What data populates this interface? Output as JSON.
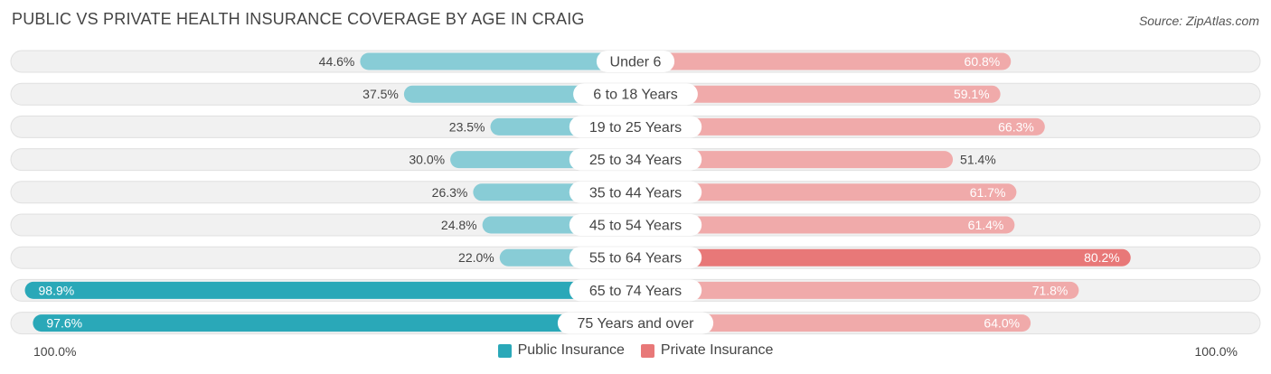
{
  "header": {
    "title": "PUBLIC VS PRIVATE HEALTH INSURANCE COVERAGE BY AGE IN CRAIG",
    "source": "Source: ZipAtlas.com"
  },
  "axis": {
    "left_label": "100.0%",
    "right_label": "100.0%"
  },
  "legend": {
    "public_label": "Public Insurance",
    "private_label": "Private Insurance"
  },
  "colors": {
    "public_dark": "#2aa8b8",
    "public_light": "#88ccd6",
    "private_dark": "#e87878",
    "private_light": "#f0aaaa",
    "row_bg": "#f1f1f1",
    "row_border": "#e0e0e0"
  },
  "chart_data": {
    "type": "bar",
    "orientation": "horizontal-diverging",
    "title": "PUBLIC VS PRIVATE HEALTH INSURANCE COVERAGE BY AGE IN CRAIG",
    "categories": [
      "Under 6",
      "6 to 18 Years",
      "19 to 25 Years",
      "25 to 34 Years",
      "35 to 44 Years",
      "45 to 54 Years",
      "55 to 64 Years",
      "65 to 74 Years",
      "75 Years and over"
    ],
    "series": [
      {
        "name": "Public Insurance",
        "values": [
          44.6,
          37.5,
          23.5,
          30.0,
          26.3,
          24.8,
          22.0,
          98.9,
          97.6
        ],
        "labels": [
          "44.6%",
          "37.5%",
          "23.5%",
          "30.0%",
          "26.3%",
          "24.8%",
          "22.0%",
          "98.9%",
          "97.6%"
        ]
      },
      {
        "name": "Private Insurance",
        "values": [
          60.8,
          59.1,
          66.3,
          51.4,
          61.7,
          61.4,
          80.2,
          71.8,
          64.0
        ],
        "labels": [
          "60.8%",
          "59.1%",
          "66.3%",
          "51.4%",
          "61.7%",
          "61.4%",
          "80.2%",
          "71.8%",
          "64.0%"
        ]
      }
    ],
    "xlim": [
      -100,
      100
    ],
    "legend_position": "bottom-center"
  }
}
